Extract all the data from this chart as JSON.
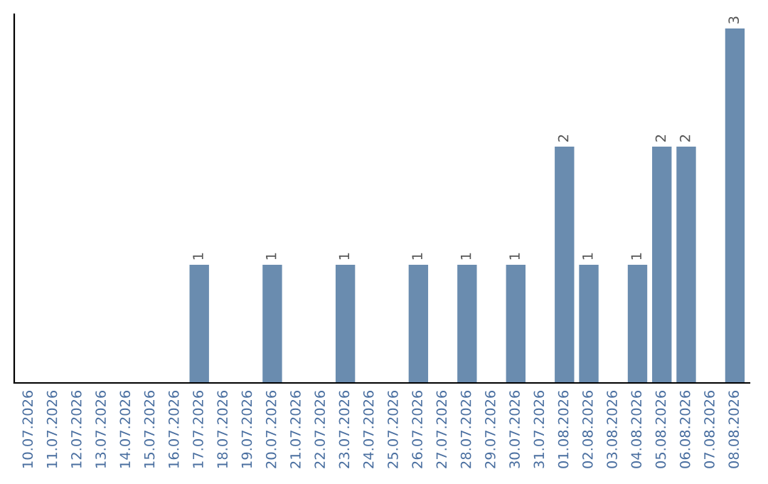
{
  "chart_data": {
    "type": "bar",
    "categories": [
      "10.07.2026",
      "11.07.2026",
      "12.07.2026",
      "13.07.2026",
      "14.07.2026",
      "15.07.2026",
      "16.07.2026",
      "17.07.2026",
      "18.07.2026",
      "19.07.2026",
      "20.07.2026",
      "21.07.2026",
      "22.07.2026",
      "23.07.2026",
      "24.07.2026",
      "25.07.2026",
      "26.07.2026",
      "27.07.2026",
      "28.07.2026",
      "29.07.2026",
      "30.07.2026",
      "31.07.2026",
      "01.08.2026",
      "02.08.2026",
      "03.08.2026",
      "04.08.2026",
      "05.08.2026",
      "06.08.2026",
      "07.08.2026",
      "08.08.2026"
    ],
    "values": [
      0,
      0,
      0,
      0,
      0,
      0,
      0,
      1,
      0,
      0,
      1,
      0,
      0,
      1,
      0,
      0,
      1,
      0,
      1,
      0,
      1,
      0,
      2,
      1,
      0,
      1,
      2,
      2,
      0,
      3
    ],
    "value_labels": [
      null,
      null,
      null,
      null,
      null,
      null,
      null,
      "1",
      null,
      null,
      "1",
      null,
      null,
      "1",
      null,
      null,
      "1",
      null,
      "1",
      null,
      "1",
      null,
      "2",
      "1",
      null,
      "1",
      "2",
      "2",
      null,
      "3"
    ],
    "color": "#6a8caf",
    "ylim": [
      0,
      3.12
    ],
    "tick_labels": "x",
    "grid": false
  }
}
